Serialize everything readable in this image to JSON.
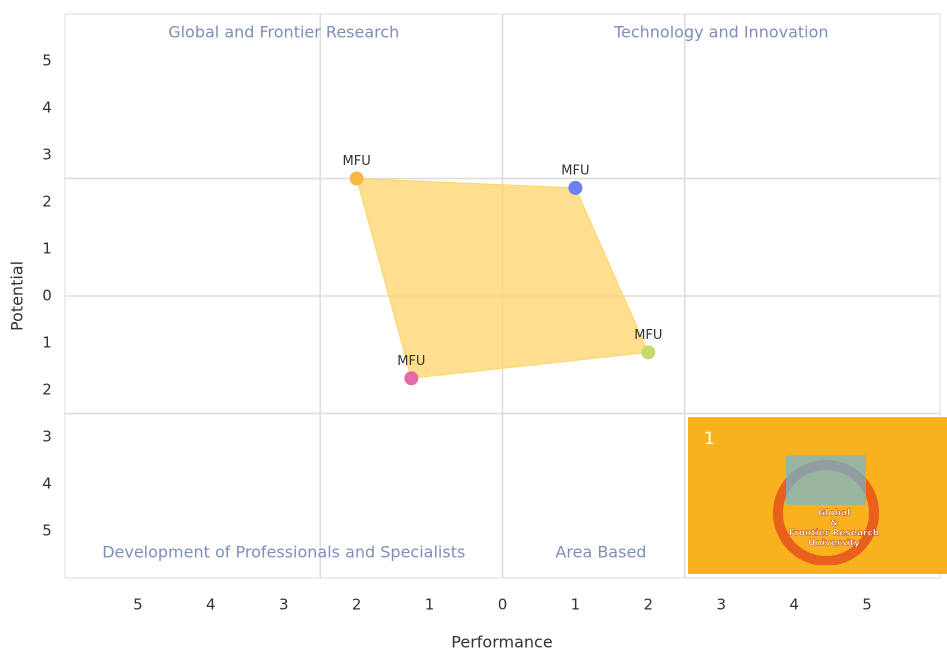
{
  "chart_data": {
    "type": "scatter",
    "x_label": "Performance",
    "y_label": "Potential",
    "xlim": [
      -6,
      6
    ],
    "ylim": [
      -6,
      6
    ],
    "xticks": [
      {
        "value": -5,
        "label": "5"
      },
      {
        "value": -4,
        "label": "4"
      },
      {
        "value": -3,
        "label": "3"
      },
      {
        "value": -2,
        "label": "2"
      },
      {
        "value": -1,
        "label": "1"
      },
      0,
      1,
      2,
      3,
      4,
      5
    ],
    "yticks": [
      {
        "value": -5,
        "label": "5"
      },
      {
        "value": -4,
        "label": "4"
      },
      {
        "value": -3,
        "label": "3"
      },
      {
        "value": -2,
        "label": "2"
      },
      {
        "value": -1,
        "label": "1"
      },
      0,
      1,
      2,
      3,
      4,
      5
    ],
    "x_gridlines": [
      -2.5,
      0,
      2.5
    ],
    "y_gridlines": [
      -2.5,
      0,
      2.5
    ],
    "quadrant_labels": [
      "Global and Frontier Research",
      "Technology and Innovation",
      "Development of Professionals and Specialists",
      "Area Based"
    ],
    "polygon_color": "#fdd46b",
    "points": {
      "x": [
        -2,
        1,
        2,
        -1.25
      ],
      "y": [
        2.5,
        2.3,
        -1.2,
        -1.75
      ],
      "labels": [
        "MFU",
        "MFU",
        "MFU",
        "MFU"
      ],
      "colors": [
        "#f5b942",
        "#6b7ff0",
        "#c9d86a",
        "#e46aa8"
      ]
    }
  },
  "overlay": {
    "number": "1",
    "logo_lines": [
      "Global",
      "&",
      "Frontier Research",
      "University"
    ]
  }
}
